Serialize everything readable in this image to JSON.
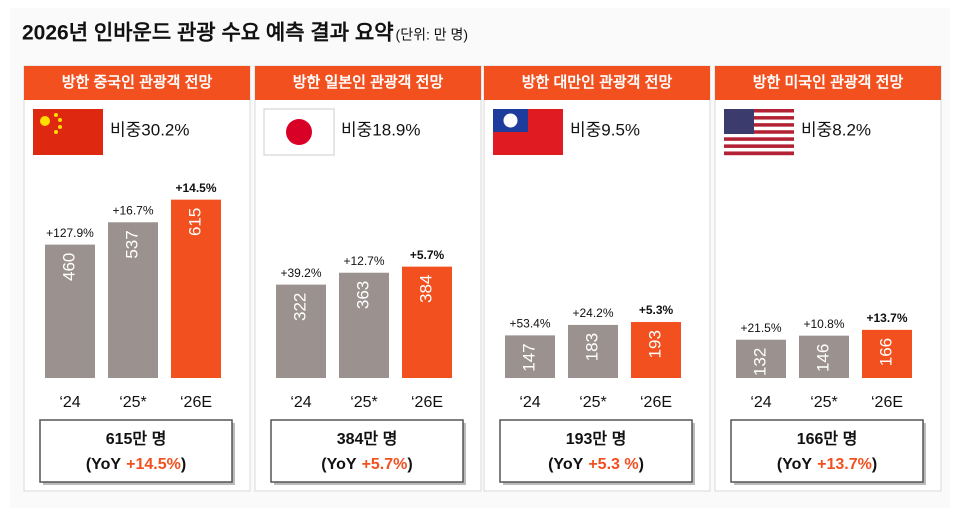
{
  "page": {
    "title": "2026년 인바운드 관광 수요 예측 결과 요약",
    "unit": "(단위: 만 명)"
  },
  "chart_data": [
    {
      "type": "bar",
      "title": "방한 중국인 관광객 전망",
      "share": "비중30.2%",
      "categories": [
        "‘24",
        "‘25*",
        "‘26E"
      ],
      "values": [
        460,
        537,
        615
      ],
      "growth_labels": [
        "+127.9%",
        "+16.7%",
        "+14.5%"
      ],
      "colors": [
        "#9b928f",
        "#9b928f",
        "#f2501f"
      ],
      "ylim": [
        0,
        700
      ],
      "summary_total": "615만 명",
      "yoy_open": "(YoY",
      "yoy_value": "+14.5%",
      "yoy_close": ")"
    },
    {
      "type": "bar",
      "title": "방한 일본인 관광객 전망",
      "share": "비중18.9%",
      "categories": [
        "‘24",
        "‘25*",
        "‘26E"
      ],
      "values": [
        322,
        363,
        384
      ],
      "growth_labels": [
        "+39.2%",
        "+12.7%",
        "+5.7%"
      ],
      "colors": [
        "#9b928f",
        "#9b928f",
        "#f2501f"
      ],
      "ylim": [
        0,
        700
      ],
      "summary_total": "384만 명",
      "yoy_open": "(YoY",
      "yoy_value": "+5.7%",
      "yoy_close": ")"
    },
    {
      "type": "bar",
      "title": "방한 대만인 관광객 전망",
      "share": "비중9.5%",
      "categories": [
        "‘24",
        "‘25*",
        "‘26E"
      ],
      "values": [
        147,
        183,
        193
      ],
      "growth_labels": [
        "+53.4%",
        "+24.2%",
        "+5.3%"
      ],
      "colors": [
        "#9b928f",
        "#9b928f",
        "#f2501f"
      ],
      "ylim": [
        0,
        700
      ],
      "summary_total": "193만 명",
      "yoy_open": "(YoY",
      "yoy_value": "+5.3 %",
      "yoy_close": ")"
    },
    {
      "type": "bar",
      "title": "방한 미국인 관광객 전망",
      "share": "비중8.2%",
      "categories": [
        "‘24",
        "‘25*",
        "‘26E"
      ],
      "values": [
        132,
        146,
        166
      ],
      "growth_labels": [
        "+21.5%",
        "+10.8%",
        "+13.7%"
      ],
      "colors": [
        "#9b928f",
        "#9b928f",
        "#f2501f"
      ],
      "ylim": [
        0,
        700
      ],
      "summary_total": "166만 명",
      "yoy_open": "(YoY",
      "yoy_value": "+13.7%",
      "yoy_close": ")"
    }
  ]
}
